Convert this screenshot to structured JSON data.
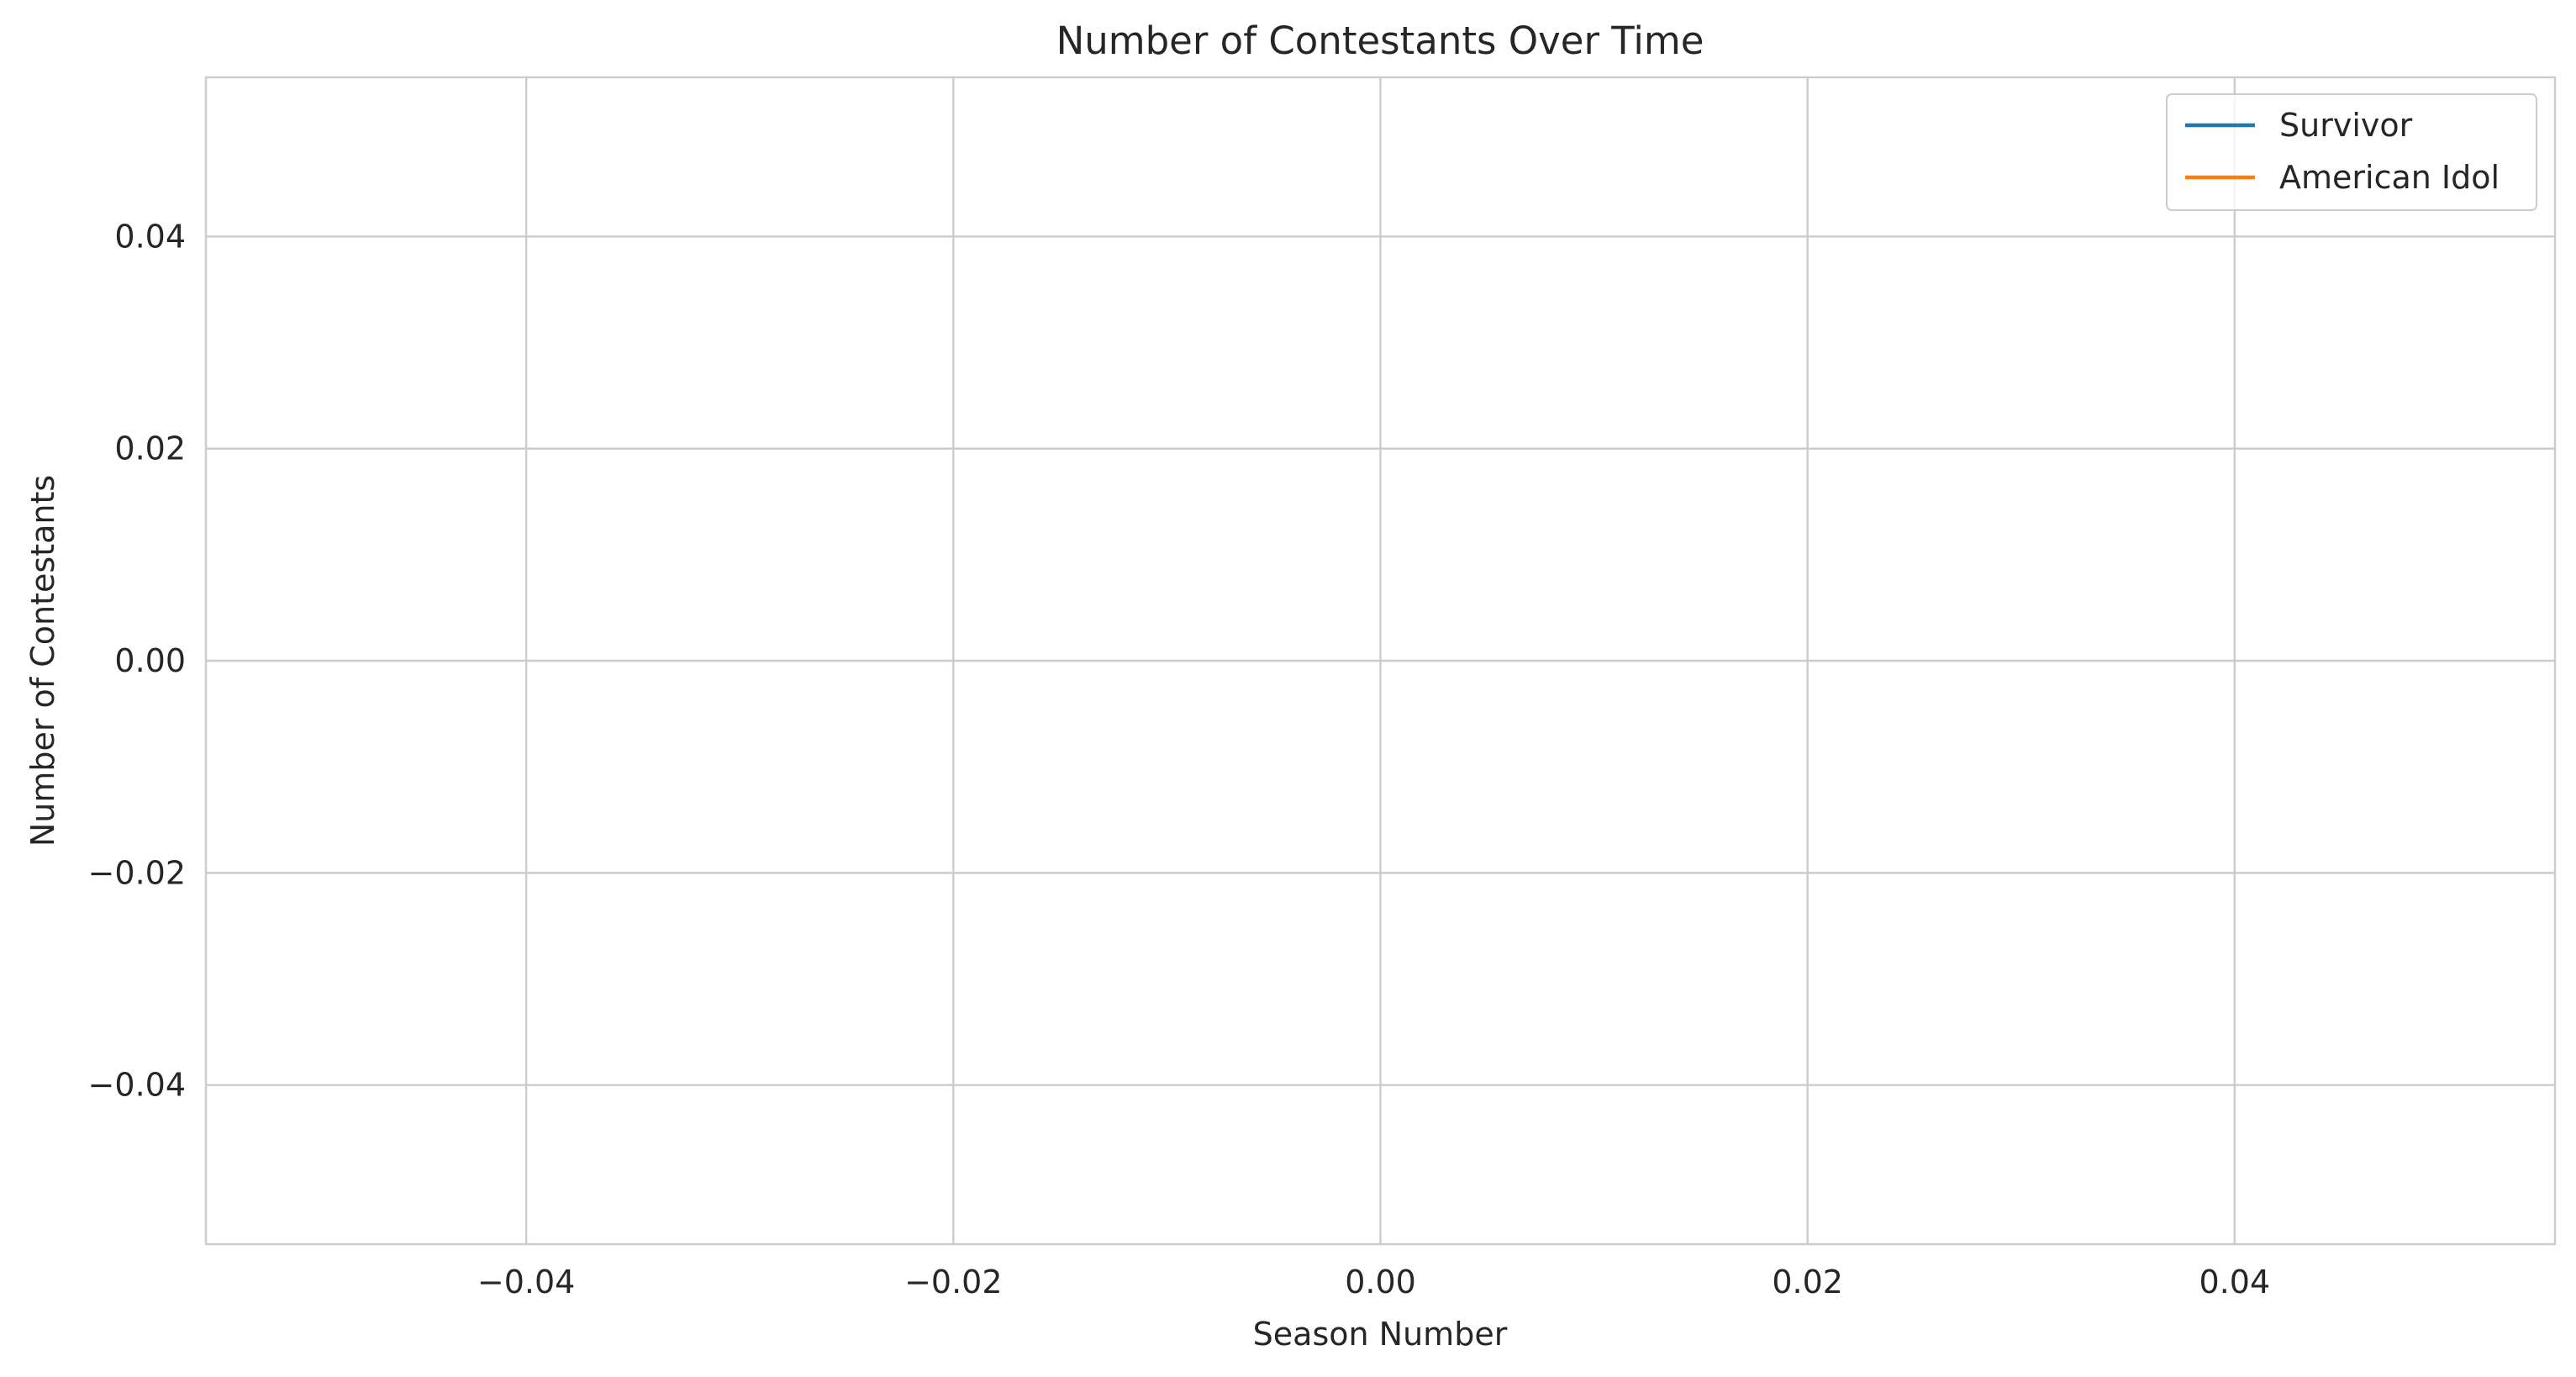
{
  "chart_data": {
    "type": "line",
    "title": "Number of Contestants Over Time",
    "xlabel": "Season Number",
    "ylabel": "Number of Contestants",
    "xlim": [
      -0.055,
      0.055
    ],
    "ylim": [
      -0.055,
      0.055
    ],
    "x_ticks": [
      -0.04,
      -0.02,
      0.0,
      0.02,
      0.04
    ],
    "x_tick_labels": [
      "−0.04",
      "−0.02",
      "0.00",
      "0.02",
      "0.04"
    ],
    "y_ticks": [
      0.04,
      0.02,
      0.0,
      -0.02,
      -0.04
    ],
    "y_tick_labels": [
      "0.04",
      "0.02",
      "0.00",
      "−0.02",
      "−0.04"
    ],
    "grid": true,
    "legend_position": "top-right",
    "series": [
      {
        "name": "Survivor",
        "color": "#1f77b4",
        "x": [],
        "y": []
      },
      {
        "name": "American Idol",
        "color": "#ff7f0e",
        "x": [],
        "y": []
      }
    ]
  }
}
